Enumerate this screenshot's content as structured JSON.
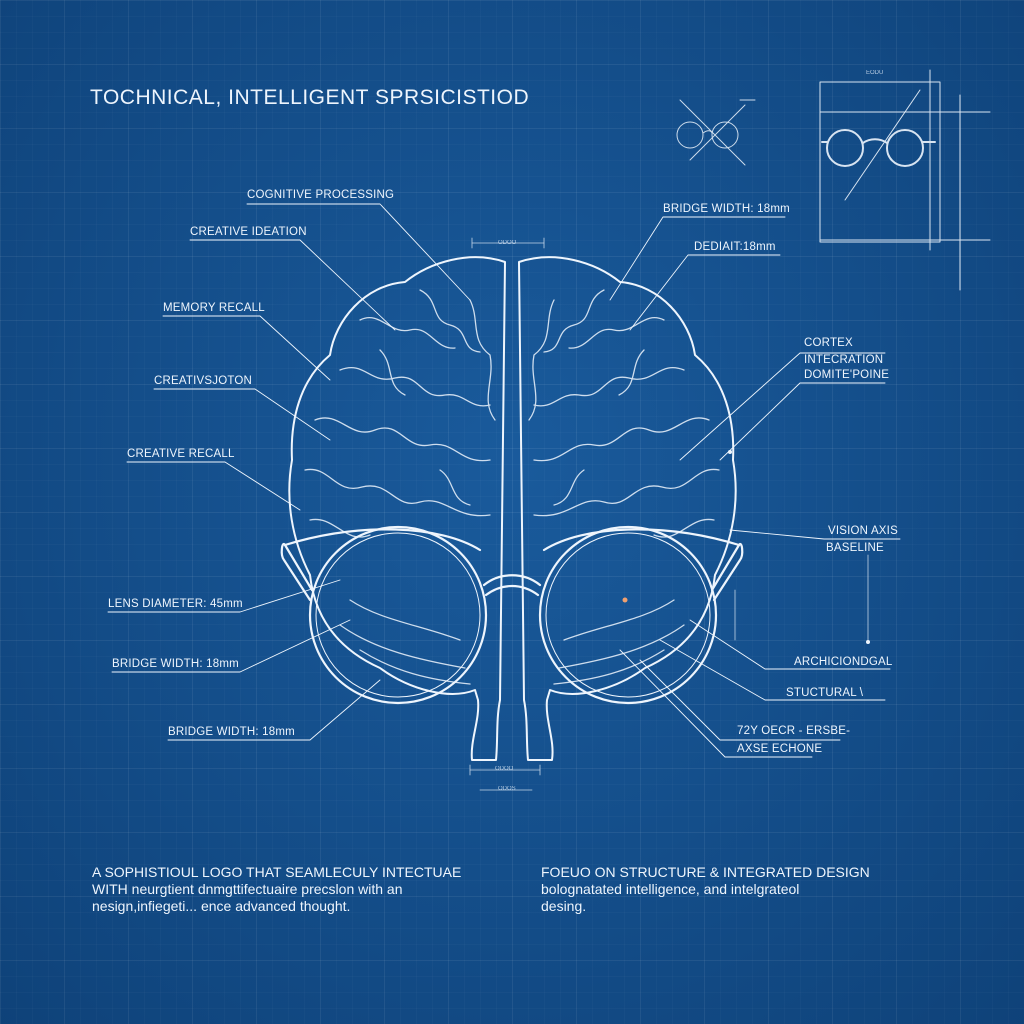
{
  "title": "TOCHNICAL, INTELLIGENT SPRSICISTIOD",
  "labels_left": [
    "COGNITIVE PROCESSING",
    "CREATIVE IDEATION",
    "MEMORY RECALL",
    "CREATIVSJOTON",
    "CREATIVE RECALL",
    "LENS DIAMETER: 45mm",
    "BRIDGE WIDTH: 18mm",
    "BRIDGE WIDTH: 18mm"
  ],
  "labels_right": [
    "BRIDGE WIDTH: 18mm",
    "DEDIAIT:18mm",
    "CORTEX",
    "INTECRATION",
    "DOMITE'POINE",
    "VISION AXIS",
    "BASELINE",
    "ARCHICIONDGAL",
    "STUCTURAL \\",
    "72Y OECR - ERSBE-",
    "AXSE ECHONE"
  ],
  "tiny_labels": [
    "ODOO",
    "ODOO",
    "ODOS",
    "EODU"
  ],
  "footer_left": [
    "A SOPHISTIOUL LOGO THAT SEAMLECULY INTECTUAE",
    "WITH neurgtient dnmgttifectuaire precslon with an",
    "nesign,infiegeti... ence advanced thought."
  ],
  "footer_right": [
    "FOEUO ON STRUCTURE & INTEGRATED DESIGN",
    "bolognatated intelligence, and intelgrateol",
    "desing."
  ],
  "colors": {
    "background": "#12508f",
    "line": "#eef5fd"
  }
}
